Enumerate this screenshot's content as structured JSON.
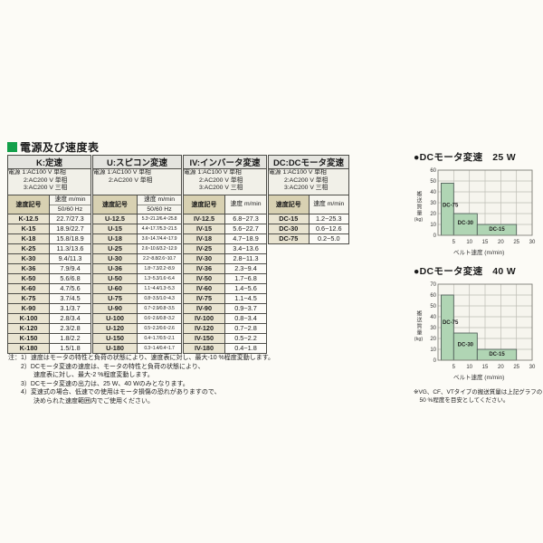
{
  "page": {
    "section_title": "電源及び速度表"
  },
  "table": {
    "groups": [
      {
        "key": "K",
        "title": "K:定速",
        "power_lines": [
          "電源 1:AC100 V 単相",
          "2:AC200 V 単相",
          "3:AC200 V 三相"
        ],
        "col_code": "速度記号",
        "col_speed": "速度 m/min",
        "col_speed2": "50/60 Hz",
        "small_values": false,
        "rows": [
          {
            "code": "K-12.5",
            "value": "22.7/27.3"
          },
          {
            "code": "K-15",
            "value": "18.9/22.7"
          },
          {
            "code": "K-18",
            "value": "15.8/18.9"
          },
          {
            "code": "K-25",
            "value": "11.3/13.6"
          },
          {
            "code": "K-30",
            "value": "9.4/11.3"
          },
          {
            "code": "K-36",
            "value": "7.9/9.4"
          },
          {
            "code": "K-50",
            "value": "5.6/6.8"
          },
          {
            "code": "K-60",
            "value": "4.7/5.6"
          },
          {
            "code": "K-75",
            "value": "3.7/4.5"
          },
          {
            "code": "K-90",
            "value": "3.1/3.7"
          },
          {
            "code": "K-100",
            "value": "2.8/3.4"
          },
          {
            "code": "K-120",
            "value": "2.3/2.8"
          },
          {
            "code": "K-150",
            "value": "1.8/2.2"
          },
          {
            "code": "K-180",
            "value": "1.5/1.8"
          }
        ]
      },
      {
        "key": "U",
        "title": "U:スピコン変速",
        "power_lines": [
          "電源 1:AC100 V 単相",
          "2:AC200 V 単相"
        ],
        "col_code": "速度記号",
        "col_speed": "速度 m/min",
        "col_speed2": "50/60 Hz",
        "small_values": true,
        "rows": [
          {
            "code": "U-12.5",
            "value": "5.3~21.2/6.4~25.8"
          },
          {
            "code": "U-15",
            "value": "4.4~17.7/5.3~21.5"
          },
          {
            "code": "U-18",
            "value": "3.6~14.7/4.4~17.9"
          },
          {
            "code": "U-25",
            "value": "2.6~10.6/3.2~12.9"
          },
          {
            "code": "U-30",
            "value": "2.2~8.8/2.6~10.7"
          },
          {
            "code": "U-36",
            "value": "1.8~7.3/2.2~8.9"
          },
          {
            "code": "U-50",
            "value": "1.3~5.3/1.6~6.4"
          },
          {
            "code": "U-60",
            "value": "1.1~4.4/1.3~5.3"
          },
          {
            "code": "U-75",
            "value": "0.8~3.5/1.0~4.3"
          },
          {
            "code": "U-90",
            "value": "0.7~2.9/0.8~3.5"
          },
          {
            "code": "U-100",
            "value": "0.6~2.6/0.8~3.2"
          },
          {
            "code": "U-120",
            "value": "0.5~2.2/0.6~2.6"
          },
          {
            "code": "U-150",
            "value": "0.4~1.7/0.5~2.1"
          },
          {
            "code": "U-180",
            "value": "0.3~1.4/0.4~1.7"
          }
        ]
      },
      {
        "key": "IV",
        "title": "IV:インバータ変速",
        "power_lines": [
          "電源 1:AC100 V 単相",
          "2:AC200 V 単相",
          "3:AC200 V 三相"
        ],
        "col_code": "速度記号",
        "col_speed": "速度 m/min",
        "col_speed2": null,
        "small_values": false,
        "rows": [
          {
            "code": "IV-12.5",
            "value": "6.8~27.3"
          },
          {
            "code": "IV-15",
            "value": "5.6~22.7"
          },
          {
            "code": "IV-18",
            "value": "4.7~18.9"
          },
          {
            "code": "IV-25",
            "value": "3.4~13.6"
          },
          {
            "code": "IV-30",
            "value": "2.8~11.3"
          },
          {
            "code": "IV-36",
            "value": "2.3~9.4"
          },
          {
            "code": "IV-50",
            "value": "1.7~6.8"
          },
          {
            "code": "IV-60",
            "value": "1.4~5.6"
          },
          {
            "code": "IV-75",
            "value": "1.1~4.5"
          },
          {
            "code": "IV-90",
            "value": "0.9~3.7"
          },
          {
            "code": "IV-100",
            "value": "0.8~3.4"
          },
          {
            "code": "IV-120",
            "value": "0.7~2.8"
          },
          {
            "code": "IV-150",
            "value": "0.5~2.2"
          },
          {
            "code": "IV-180",
            "value": "0.4~1.8"
          }
        ]
      },
      {
        "key": "DC",
        "title": "DC:DCモータ変速",
        "power_lines": [
          "電源 1:AC100 V 単相",
          "2:AC200 V 単相",
          "3:AC200 V 三相"
        ],
        "col_code": "速度記号",
        "col_speed": "速度 m/min",
        "col_speed2": null,
        "small_values": false,
        "rows": [
          {
            "code": "DC-15",
            "value": "1.2~25.3"
          },
          {
            "code": "DC-30",
            "value": "0.6~12.6"
          },
          {
            "code": "DC-75",
            "value": "0.2~5.0"
          }
        ]
      }
    ]
  },
  "notes": [
    "注：1）速度はモータの特性と負荷の状態により、速度表に対し、最大-10 %程度変動します。",
    "　　2）DCモータ変速の速度は、モータの特性と負荷の状態により、",
    "　　　　速度表に対し、最大-2 %程度変動します。",
    "　　3）DCモータ変速の出力は、25 W、40 Wのみとなります。",
    "　　4）変速式の場合、低速での使用はモータ損傷の恐れがありますので、",
    "　　　　決められた速度範囲内でご使用ください。"
  ],
  "chart_data": [
    {
      "type": "area",
      "display_title": "●DCモータ変速　25 W",
      "title": "DCモータ変速 25 W",
      "xlabel": "ベルト速度 (m/min)",
      "ylabel": "搬送質量 (kg)",
      "ylabel_chars": "搬送質量",
      "ylabel_unit": "(kg)",
      "xlim": [
        0,
        30
      ],
      "ylim": [
        0,
        60
      ],
      "xticks": [
        5,
        10,
        15,
        20,
        25,
        30
      ],
      "yticks": [
        0,
        10,
        20,
        30,
        40,
        50,
        60
      ],
      "grid": true,
      "legend": "labels-inside-area",
      "series": [
        {
          "name": "DC-75",
          "x_range": [
            1,
            5
          ],
          "max_load_kg": 48
        },
        {
          "name": "DC-30",
          "x_range": [
            5,
            12.5
          ],
          "max_load_kg": 20
        },
        {
          "name": "DC-15",
          "x_range": [
            12.5,
            25
          ],
          "max_load_kg": 10
        }
      ],
      "fill_color": "#b0d5b4",
      "edge_color": "#52615a",
      "grid_color": "#bdbdb4",
      "plot_bg": "#f6f5ee"
    },
    {
      "type": "area",
      "display_title": "●DCモータ変速　40 W",
      "title": "DCモータ変速 40 W",
      "xlabel": "ベルト速度 (m/min)",
      "ylabel": "搬送質量 (kg)",
      "ylabel_chars": "搬送質量",
      "ylabel_unit": "(kg)",
      "xlim": [
        0,
        30
      ],
      "ylim": [
        0,
        70
      ],
      "xticks": [
        5,
        10,
        15,
        20,
        25,
        30
      ],
      "yticks": [
        0,
        10,
        20,
        30,
        40,
        50,
        60,
        70
      ],
      "grid": true,
      "legend": "labels-inside-area",
      "series": [
        {
          "name": "DC-75",
          "x_range": [
            1,
            5
          ],
          "max_load_kg": 60
        },
        {
          "name": "DC-30",
          "x_range": [
            5,
            12.5
          ],
          "max_load_kg": 25
        },
        {
          "name": "DC-15",
          "x_range": [
            12.5,
            25
          ],
          "max_load_kg": 10
        }
      ],
      "fill_color": "#b0d5b4",
      "edge_color": "#52615a",
      "grid_color": "#bdbdb4",
      "plot_bg": "#f6f5ee"
    }
  ],
  "chart_footnote": [
    "※VG、CF、VTタイプの搬送質量は上記グラフの",
    "　50 %程度を目安としてください。"
  ]
}
